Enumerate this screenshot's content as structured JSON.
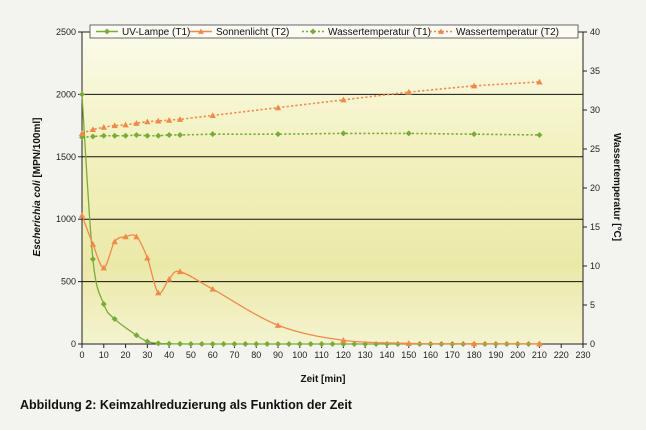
{
  "caption": "Abbildung 2: Keimzahlreduzierung als Funktion der Zeit",
  "chart_data": {
    "type": "line",
    "xlabel": "Zeit [min]",
    "ylabel": "Escherichia coli [MPN/100ml]",
    "ylabel_italic_part": "Escherichia coli",
    "ylabel_rest": " [MPN/100ml]",
    "y2label": "Wassertemperatur [°C]",
    "xlim": [
      0,
      230
    ],
    "ylim": [
      0,
      2500
    ],
    "y2lim": [
      0,
      40
    ],
    "x_ticks": [
      0,
      10,
      20,
      30,
      40,
      50,
      60,
      70,
      80,
      90,
      100,
      110,
      120,
      130,
      140,
      150,
      160,
      170,
      180,
      190,
      200,
      210,
      220,
      230
    ],
    "y_ticks": [
      0,
      500,
      1000,
      1500,
      2000,
      2500
    ],
    "y2_ticks": [
      0,
      5,
      10,
      15,
      20,
      25,
      30,
      35,
      40
    ],
    "grid": "horizontal",
    "legend_position": "top",
    "series": [
      {
        "name": "UV-Lampe (T1)",
        "axis": "left",
        "style": "solid",
        "marker": "diamond",
        "color": "#7aab3a",
        "x": [
          0,
          5,
          10,
          15,
          25,
          30,
          35,
          40,
          45,
          50,
          55,
          60,
          65,
          70,
          75,
          80,
          85,
          90,
          95,
          100,
          105,
          110,
          115,
          120,
          125,
          130,
          135,
          140,
          145,
          150,
          155,
          160,
          165,
          170,
          175,
          180,
          185,
          190,
          195,
          200,
          205,
          210
        ],
        "y": [
          2000,
          680,
          320,
          200,
          70,
          20,
          5,
          2,
          1,
          0,
          0,
          0,
          0,
          0,
          0,
          0,
          0,
          0,
          0,
          0,
          0,
          0,
          0,
          0,
          0,
          0,
          0,
          0,
          0,
          0,
          0,
          0,
          0,
          0,
          0,
          0,
          0,
          0,
          0,
          0,
          0,
          0
        ]
      },
      {
        "name": "Sonnenlicht (T2)",
        "axis": "left",
        "style": "solid",
        "marker": "triangle",
        "color": "#f08a4b",
        "x": [
          0,
          5,
          10,
          15,
          20,
          25,
          30,
          35,
          40,
          45,
          60,
          90,
          120,
          150,
          180,
          210
        ],
        "y": [
          1030,
          800,
          610,
          820,
          860,
          860,
          690,
          410,
          520,
          580,
          440,
          150,
          30,
          5,
          2,
          1
        ]
      },
      {
        "name": "Wassertemperatur (T1)",
        "axis": "right",
        "style": "dotted",
        "marker": "diamond",
        "color": "#7aab3a",
        "x": [
          0,
          5,
          10,
          15,
          20,
          25,
          30,
          35,
          40,
          45,
          60,
          90,
          120,
          150,
          180,
          210
        ],
        "y": [
          26.5,
          26.6,
          26.7,
          26.7,
          26.7,
          26.8,
          26.7,
          26.7,
          26.8,
          26.8,
          26.9,
          26.9,
          27.0,
          27.0,
          26.9,
          26.8
        ]
      },
      {
        "name": "Wassertemperatur (T2)",
        "axis": "right",
        "style": "dotted",
        "marker": "triangle",
        "color": "#f08a4b",
        "x": [
          0,
          5,
          10,
          15,
          20,
          25,
          30,
          35,
          40,
          45,
          60,
          90,
          120,
          150,
          180,
          210
        ],
        "y": [
          27.0,
          27.5,
          27.8,
          28.0,
          28.1,
          28.3,
          28.5,
          28.6,
          28.7,
          28.8,
          29.3,
          30.3,
          31.3,
          32.3,
          33.1,
          33.6
        ]
      }
    ]
  }
}
